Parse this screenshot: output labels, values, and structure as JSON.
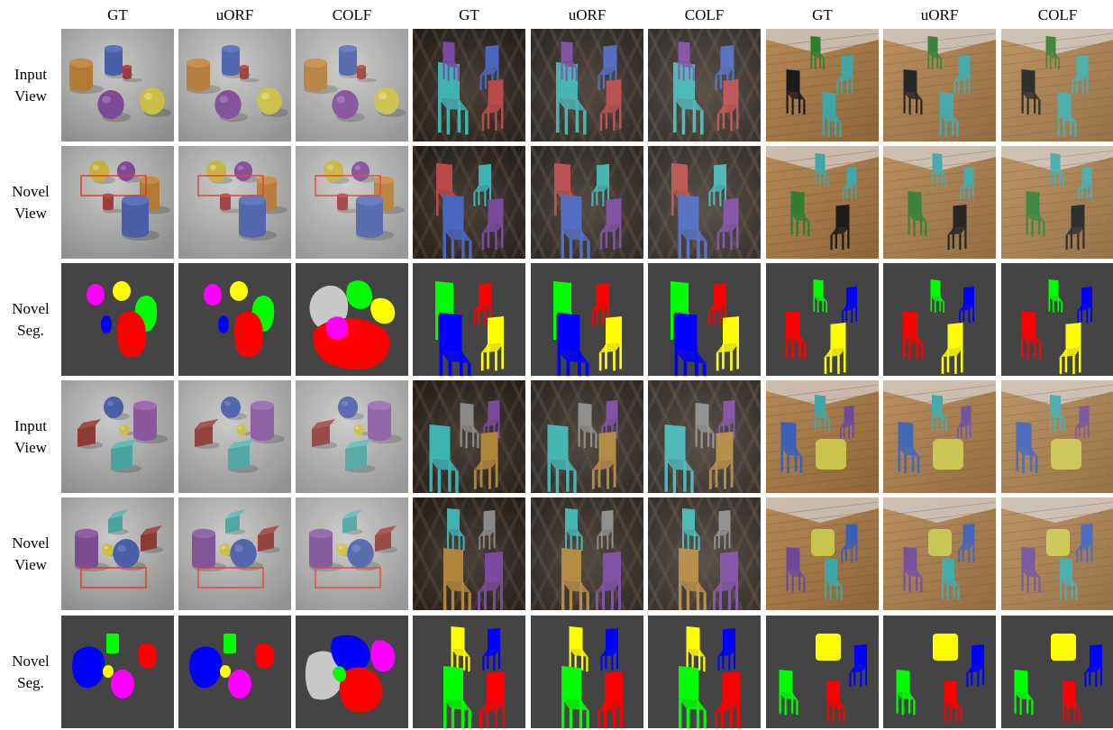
{
  "figure": {
    "column_headers": [
      "GT",
      "uORF",
      "COLF",
      "GT",
      "uORF",
      "COLF",
      "GT",
      "uORF",
      "COLF"
    ],
    "row_labels": [
      {
        "line1": "Input",
        "line2": "View",
        "kind": "view"
      },
      {
        "line1": "Novel",
        "line2": "View",
        "kind": "view"
      },
      {
        "line1": "Novel",
        "line2": "Seg.",
        "kind": "seg"
      },
      {
        "line1": "Input",
        "line2": "View",
        "kind": "view"
      },
      {
        "line1": "Novel",
        "line2": "View",
        "kind": "view"
      },
      {
        "line1": "Novel",
        "line2": "Seg.",
        "kind": "seg"
      }
    ],
    "scene_types": [
      "clevr",
      "chairs",
      "room"
    ],
    "colors": {
      "seg_background": "#444444",
      "highlight_box": "#e23a32",
      "seg_magenta": "#ff00ff",
      "seg_yellow": "#ffff00",
      "seg_green": "#00ff00",
      "seg_blue": "#0000ff",
      "seg_red": "#ff0000",
      "seg_gray": "#c8c8c8"
    }
  }
}
